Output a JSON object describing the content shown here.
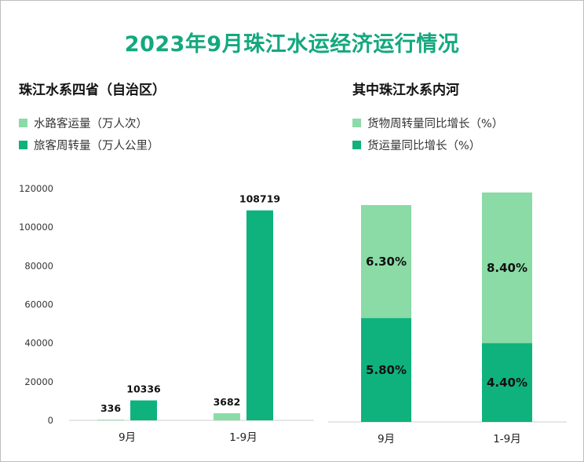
{
  "title": "2023年9月珠江水运经济运行情况",
  "colors": {
    "light": "#8adba6",
    "dark": "#0fb27d",
    "title": "#13a87e"
  },
  "chart_data": [
    {
      "type": "bar",
      "title": "珠江水系四省（自治区）",
      "categories": [
        "9月",
        "1-9月"
      ],
      "series": [
        {
          "name": "水路客运量（万人次）",
          "values": [
            336,
            3682
          ],
          "labels": [
            "336",
            "3682"
          ],
          "color": "#8adba6"
        },
        {
          "name": "旅客周转量（万人公里）",
          "values": [
            10336,
            108719
          ],
          "labels": [
            "10336",
            "108719"
          ],
          "color": "#0fb27d"
        }
      ],
      "ylim": [
        0,
        120000
      ],
      "yticks": [
        "0",
        "20000",
        "40000",
        "60000",
        "80000",
        "100000",
        "120000"
      ],
      "grid": false,
      "legend": "top-left"
    },
    {
      "type": "bar",
      "title": "其中珠江水系内河",
      "stacked": true,
      "categories": [
        "9月",
        "1-9月"
      ],
      "series": [
        {
          "name": "货物周转量同比增长（%）",
          "values": [
            6.3,
            8.4
          ],
          "labels": [
            "6.30%",
            "8.40%"
          ],
          "color": "#8adba6"
        },
        {
          "name": "货运量同比增长（%）",
          "values": [
            5.8,
            4.4
          ],
          "labels": [
            "5.80%",
            "4.40%"
          ],
          "color": "#0fb27d"
        }
      ],
      "grid": false,
      "legend": "top-left"
    }
  ]
}
